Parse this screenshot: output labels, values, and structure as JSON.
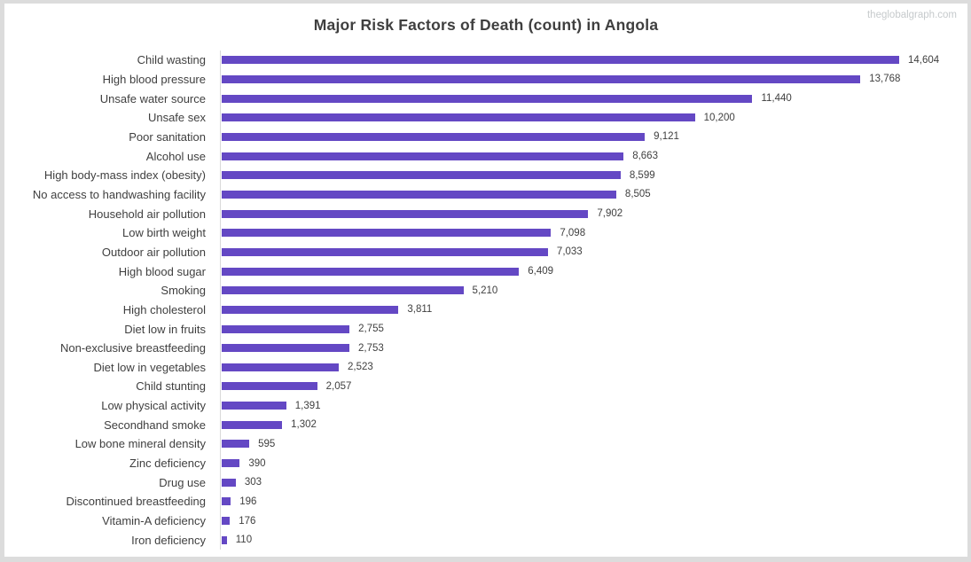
{
  "page": {
    "watermark": "theglobalgraph.com"
  },
  "chart_data": {
    "type": "bar",
    "orientation": "horizontal",
    "title": "Major Risk Factors of Death (count) in Angola",
    "xlabel": "",
    "ylabel": "",
    "xlim": [
      0,
      16000
    ],
    "grid": false,
    "legend": false,
    "bar_color": "#6448c4",
    "axis_color": "#d9d9d9",
    "text_color": "#3f3f3f",
    "value_label_color": "#404040",
    "categories": [
      "Child wasting",
      "High blood pressure",
      "Unsafe water source",
      "Unsafe sex",
      "Poor sanitation",
      "Alcohol use",
      "High body-mass index (obesity)",
      "No access to handwashing facility",
      "Household air pollution",
      "Low birth weight",
      "Outdoor air pollution",
      "High blood sugar",
      "Smoking",
      "High cholesterol",
      "Diet low in fruits",
      "Non-exclusive breastfeeding",
      "Diet low in vegetables",
      "Child stunting",
      "Low physical activity",
      "Secondhand smoke",
      "Low bone mineral density",
      "Zinc deficiency",
      "Drug use",
      "Discontinued breastfeeding",
      "Vitamin-A deficiency",
      "Iron deficiency"
    ],
    "values": [
      14604,
      13768,
      11440,
      10200,
      9121,
      8663,
      8599,
      8505,
      7902,
      7098,
      7033,
      6409,
      5210,
      3811,
      2755,
      2753,
      2523,
      2057,
      1391,
      1302,
      595,
      390,
      303,
      196,
      176,
      110
    ],
    "value_labels": [
      "14,604",
      "13,768",
      "11,440",
      "10,200",
      "9,121",
      "8,663",
      "8,599",
      "8,505",
      "7,902",
      "7,098",
      "7,033",
      "6,409",
      "5,210",
      "3,811",
      "2,755",
      "2,753",
      "2,523",
      "2,057",
      "1,391",
      "1,302",
      "595",
      "390",
      "303",
      "196",
      "176",
      "110"
    ]
  }
}
